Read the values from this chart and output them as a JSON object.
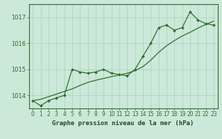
{
  "title": "Graphe pression niveau de la mer (hPa)",
  "x_values": [
    0,
    1,
    2,
    3,
    4,
    5,
    6,
    7,
    8,
    9,
    10,
    11,
    12,
    13,
    14,
    15,
    16,
    17,
    18,
    19,
    20,
    21,
    22,
    23
  ],
  "y_main": [
    1013.8,
    1013.6,
    1013.8,
    1013.9,
    1014.0,
    1015.0,
    1014.9,
    1014.85,
    1014.9,
    1015.0,
    1014.85,
    1014.8,
    1014.75,
    1015.0,
    1015.5,
    1016.0,
    1016.6,
    1016.7,
    1016.5,
    1016.6,
    1017.2,
    1016.9,
    1016.75,
    1016.7
  ],
  "y_smooth": [
    1013.8,
    1013.85,
    1013.95,
    1014.05,
    1014.15,
    1014.25,
    1014.38,
    1014.5,
    1014.58,
    1014.65,
    1014.72,
    1014.78,
    1014.85,
    1014.95,
    1015.1,
    1015.35,
    1015.65,
    1015.9,
    1016.1,
    1016.28,
    1016.42,
    1016.58,
    1016.72,
    1016.85
  ],
  "ylim": [
    1013.5,
    1017.5
  ],
  "yticks": [
    1014,
    1015,
    1016,
    1017
  ],
  "xlim": [
    -0.5,
    23.5
  ],
  "line_color": "#2d6b2d",
  "bg_color": "#cce8d8",
  "grid_color": "#99ccbb",
  "title_color": "#1a4d1a",
  "border_color": "#2d6b2d",
  "title_fontsize": 6.5,
  "tick_fontsize": 5.5,
  "ytick_fontsize": 6.0,
  "marker": "D",
  "marker_size": 2.0,
  "line_width": 0.9
}
